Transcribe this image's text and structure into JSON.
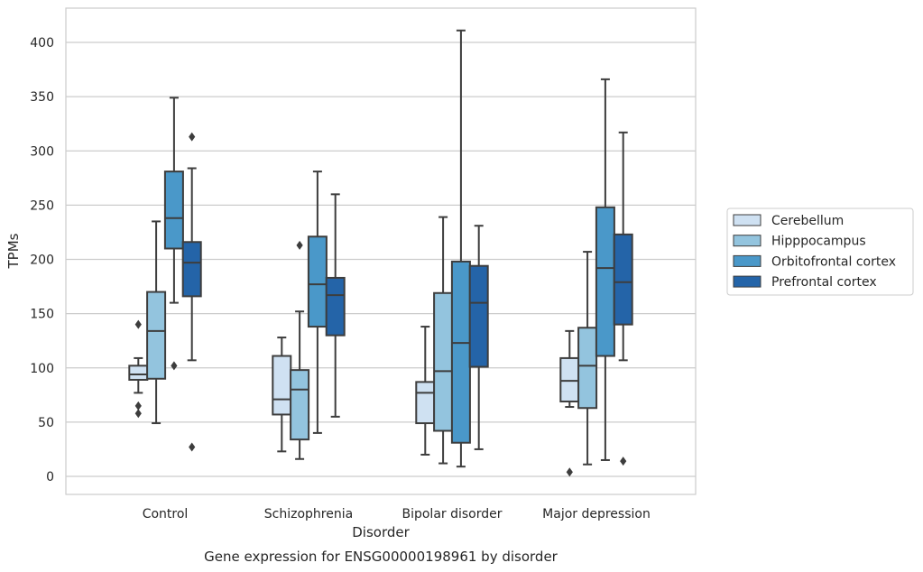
{
  "chart_data": {
    "type": "box",
    "xlabel": "Disorder",
    "ylabel": "TPMs",
    "caption": "Gene expression for ENSG00000198961 by disorder",
    "ylim": [
      -16,
      432
    ],
    "yticks": [
      0,
      50,
      100,
      150,
      200,
      250,
      300,
      350,
      400
    ],
    "grid": "horizontal",
    "legend_position": "right",
    "categories": [
      "Control",
      "Schizophrenia",
      "Bipolar disorder",
      "Major depression"
    ],
    "series": [
      {
        "name": "Cerebellum",
        "color": "#cfe1f2",
        "boxes": [
          {
            "whislo": 77,
            "q1": 89,
            "med": 94,
            "q3": 102,
            "whishi": 109,
            "fliers": [
              140,
              65,
              58
            ]
          },
          {
            "whislo": 23,
            "q1": 57,
            "med": 71,
            "q3": 111,
            "whishi": 128,
            "fliers": []
          },
          {
            "whislo": 20,
            "q1": 49,
            "med": 77,
            "q3": 87,
            "whishi": 138,
            "fliers": []
          },
          {
            "whislo": 64,
            "q1": 69,
            "med": 88,
            "q3": 109,
            "whishi": 134,
            "fliers": [
              4
            ]
          }
        ]
      },
      {
        "name": "Hipppocampus",
        "color": "#93c4de",
        "boxes": [
          {
            "whislo": 49,
            "q1": 90,
            "med": 134,
            "q3": 170,
            "whishi": 235,
            "fliers": []
          },
          {
            "whislo": 16,
            "q1": 34,
            "med": 80,
            "q3": 98,
            "whishi": 152,
            "fliers": [
              213
            ]
          },
          {
            "whislo": 12,
            "q1": 42,
            "med": 97,
            "q3": 169,
            "whishi": 239,
            "fliers": []
          },
          {
            "whislo": 11,
            "q1": 63,
            "med": 102,
            "q3": 137,
            "whishi": 207,
            "fliers": []
          }
        ]
      },
      {
        "name": "Orbitofrontal cortex",
        "color": "#4a98c9",
        "boxes": [
          {
            "whislo": 160,
            "q1": 210,
            "med": 238,
            "q3": 281,
            "whishi": 349,
            "fliers": [
              102
            ]
          },
          {
            "whislo": 40,
            "q1": 138,
            "med": 177,
            "q3": 221,
            "whishi": 281,
            "fliers": []
          },
          {
            "whislo": 9,
            "q1": 31,
            "med": 123,
            "q3": 198,
            "whishi": 411,
            "fliers": []
          },
          {
            "whislo": 15,
            "q1": 111,
            "med": 192,
            "q3": 248,
            "whishi": 366,
            "fliers": []
          }
        ]
      },
      {
        "name": "Prefrontal cortex",
        "color": "#2464a8",
        "boxes": [
          {
            "whislo": 107,
            "q1": 166,
            "med": 197,
            "q3": 216,
            "whishi": 284,
            "fliers": [
              313,
              27
            ]
          },
          {
            "whislo": 55,
            "q1": 130,
            "med": 167,
            "q3": 183,
            "whishi": 260,
            "fliers": []
          },
          {
            "whislo": 25,
            "q1": 101,
            "med": 160,
            "q3": 194,
            "whishi": 231,
            "fliers": []
          },
          {
            "whislo": 107,
            "q1": 140,
            "med": 179,
            "q3": 223,
            "whishi": 317,
            "fliers": [
              14
            ]
          }
        ]
      }
    ]
  }
}
